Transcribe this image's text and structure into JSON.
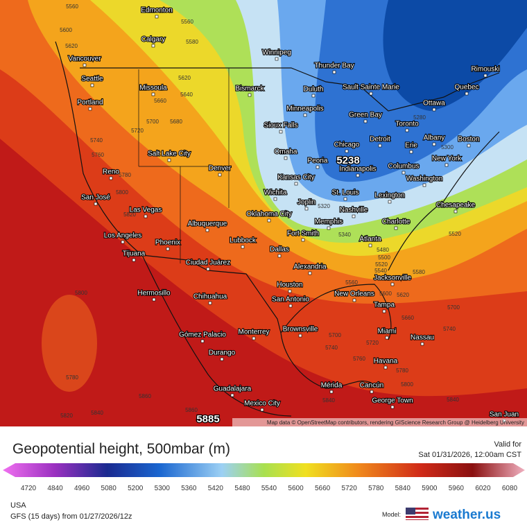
{
  "header": {
    "title": "Geopotential height, 500mbar (m)",
    "valid_label": "Valid for",
    "valid_time": "Sat 01/31/2026, 12:00am CST"
  },
  "footer": {
    "region": "USA",
    "model_run": "GFS (15 days) from 01/27/2026/12z",
    "model_label": "Model:",
    "brand": "weather.us"
  },
  "map": {
    "attribution": "Map data © OpenStreetMap contributors, rendering GIScience Research Group @ Heidelberg University",
    "min_label": "5238",
    "max_label": "5885",
    "cities": [
      "Edmonton",
      "Calgary",
      "Winnipeg",
      "Thunder Bay",
      "Rimouski",
      "Vancouver",
      "Seattle",
      "Missoula",
      "Bismarck",
      "Duluth",
      "Sault Sainte Marie",
      "Quebec",
      "Portland",
      "Ottawa",
      "Minneapolis",
      "Green Bay",
      "Sioux Falls",
      "Toronto",
      "Detroit",
      "Albany",
      "Boston",
      "Chicago",
      "Erie",
      "Salt Lake City",
      "Omaha",
      "Peoria",
      "New York",
      "Denver",
      "Indianapolis",
      "Columbus",
      "Reno",
      "Kansas City",
      "Washington",
      "Wichita",
      "St. Louis",
      "Lexington",
      "San José",
      "Las Vegas",
      "Joplin",
      "Nashville",
      "Chesapeake",
      "Oklahoma City",
      "Memphis",
      "Charlotte",
      "Albuquerque",
      "Fort Smith",
      "Los Angeles",
      "Phoenix",
      "Lubbock",
      "Atlanta",
      "Dallas",
      "Tijuana",
      "Ciudad Juárez",
      "Alexandria",
      "Jacksonville",
      "Houston",
      "Hermosillo",
      "Chihuahua",
      "New Orleans",
      "San Antonio",
      "Tampa",
      "Brownsville",
      "Monterrey",
      "Gómez Palacio",
      "Miami",
      "Nassau",
      "Durango",
      "Havana",
      "Guadalajara",
      "Mérida",
      "Cancún",
      "Mexico City",
      "George Town",
      "San Juan"
    ],
    "contour_labels": [
      "5560",
      "5600",
      "5620",
      "5560",
      "5580",
      "5620",
      "5640",
      "5660",
      "5680",
      "5700",
      "5720",
      "5740",
      "5760",
      "5780",
      "5800",
      "5820",
      "5800",
      "5780",
      "5820",
      "5840",
      "5860",
      "5860",
      "5280",
      "5300",
      "5320",
      "5340",
      "5480",
      "5500",
      "5520",
      "5540",
      "5560",
      "5580",
      "5600",
      "5620",
      "5660",
      "5700",
      "5740",
      "5720",
      "5740",
      "5700",
      "5760",
      "5780",
      "5800",
      "5840",
      "5520",
      "5840"
    ]
  },
  "legend": {
    "ticks": [
      "4720",
      "4840",
      "4960",
      "5080",
      "5200",
      "5300",
      "5360",
      "5420",
      "5480",
      "5540",
      "5600",
      "5660",
      "5720",
      "5780",
      "5840",
      "5900",
      "5960",
      "6020",
      "6080"
    ]
  }
}
